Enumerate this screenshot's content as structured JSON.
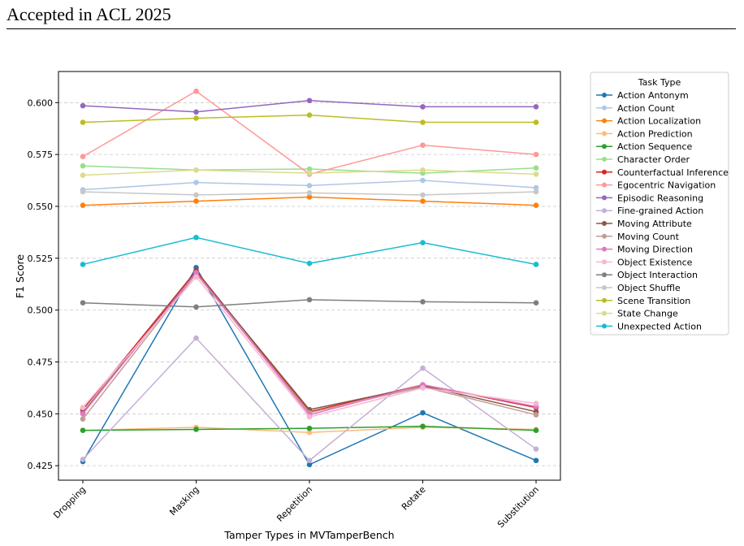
{
  "header": {
    "text": "Accepted in ACL 2025"
  },
  "chart_data": {
    "type": "line",
    "title": "",
    "xlabel": "Tamper Types in MVTamperBench",
    "ylabel": "F1 Score",
    "categories": [
      "Dropping",
      "Masking",
      "Repetition",
      "Rotate",
      "Substitution"
    ],
    "ylim": [
      0.418,
      0.615
    ],
    "yticks": [
      "0.425",
      "0.450",
      "0.475",
      "0.500",
      "0.525",
      "0.550",
      "0.575",
      "0.600"
    ],
    "grid": "horizontal dashed",
    "legend": {
      "title": "Task Type",
      "placement": "outside right"
    },
    "series": [
      {
        "name": "Action Antonym",
        "color": "#1f77b4",
        "values": [
          0.427,
          0.5205,
          0.4255,
          0.4505,
          0.4275
        ]
      },
      {
        "name": "Action Count",
        "color": "#aec7e8",
        "values": [
          0.558,
          0.5615,
          0.56,
          0.5625,
          0.559
        ]
      },
      {
        "name": "Action Localization",
        "color": "#ff7f0e",
        "values": [
          0.5505,
          0.5525,
          0.5545,
          0.5525,
          0.5505
        ]
      },
      {
        "name": "Action Prediction",
        "color": "#ffbb78",
        "values": [
          0.442,
          0.4435,
          0.441,
          0.4435,
          0.4425
        ]
      },
      {
        "name": "Action Sequence",
        "color": "#2ca02c",
        "values": [
          0.442,
          0.4425,
          0.443,
          0.444,
          0.442
        ]
      },
      {
        "name": "Character Order",
        "color": "#98df8a",
        "values": [
          0.5695,
          0.5675,
          0.568,
          0.566,
          0.5685
        ]
      },
      {
        "name": "Counterfactual Inference",
        "color": "#d62728",
        "values": [
          0.452,
          0.519,
          0.451,
          0.464,
          0.453
        ]
      },
      {
        "name": "Egocentric Navigation",
        "color": "#ff9896",
        "values": [
          0.574,
          0.6055,
          0.5655,
          0.5795,
          0.575
        ]
      },
      {
        "name": "Episodic Reasoning",
        "color": "#9467bd",
        "values": [
          0.5985,
          0.5955,
          0.601,
          0.598,
          0.598
        ]
      },
      {
        "name": "Fine-grained Action",
        "color": "#c5b0d5",
        "values": [
          0.428,
          0.4865,
          0.4275,
          0.472,
          0.433
        ]
      },
      {
        "name": "Moving Attribute",
        "color": "#8c564b",
        "values": [
          0.4505,
          0.5185,
          0.452,
          0.4635,
          0.451
        ]
      },
      {
        "name": "Moving Count",
        "color": "#c49c94",
        "values": [
          0.4475,
          0.5175,
          0.4505,
          0.463,
          0.4495
        ]
      },
      {
        "name": "Moving Direction",
        "color": "#e377c2",
        "values": [
          0.45,
          0.518,
          0.4495,
          0.464,
          0.4535
        ]
      },
      {
        "name": "Object Existence",
        "color": "#f7b6d2",
        "values": [
          0.453,
          0.516,
          0.4485,
          0.4625,
          0.455
        ]
      },
      {
        "name": "Object Interaction",
        "color": "#7f7f7f",
        "values": [
          0.5035,
          0.5015,
          0.505,
          0.504,
          0.5035
        ]
      },
      {
        "name": "Object Shuffle",
        "color": "#c7c7c7",
        "values": [
          0.557,
          0.5555,
          0.5565,
          0.5555,
          0.557
        ]
      },
      {
        "name": "Scene Transition",
        "color": "#bcbd22",
        "values": [
          0.5905,
          0.5925,
          0.594,
          0.5905,
          0.5905
        ]
      },
      {
        "name": "State Change",
        "color": "#dbdb8d",
        "values": [
          0.565,
          0.5675,
          0.566,
          0.5675,
          0.5655
        ]
      },
      {
        "name": "Unexpected Action",
        "color": "#17becf",
        "values": [
          0.522,
          0.535,
          0.5225,
          0.5325,
          0.522
        ]
      }
    ]
  }
}
